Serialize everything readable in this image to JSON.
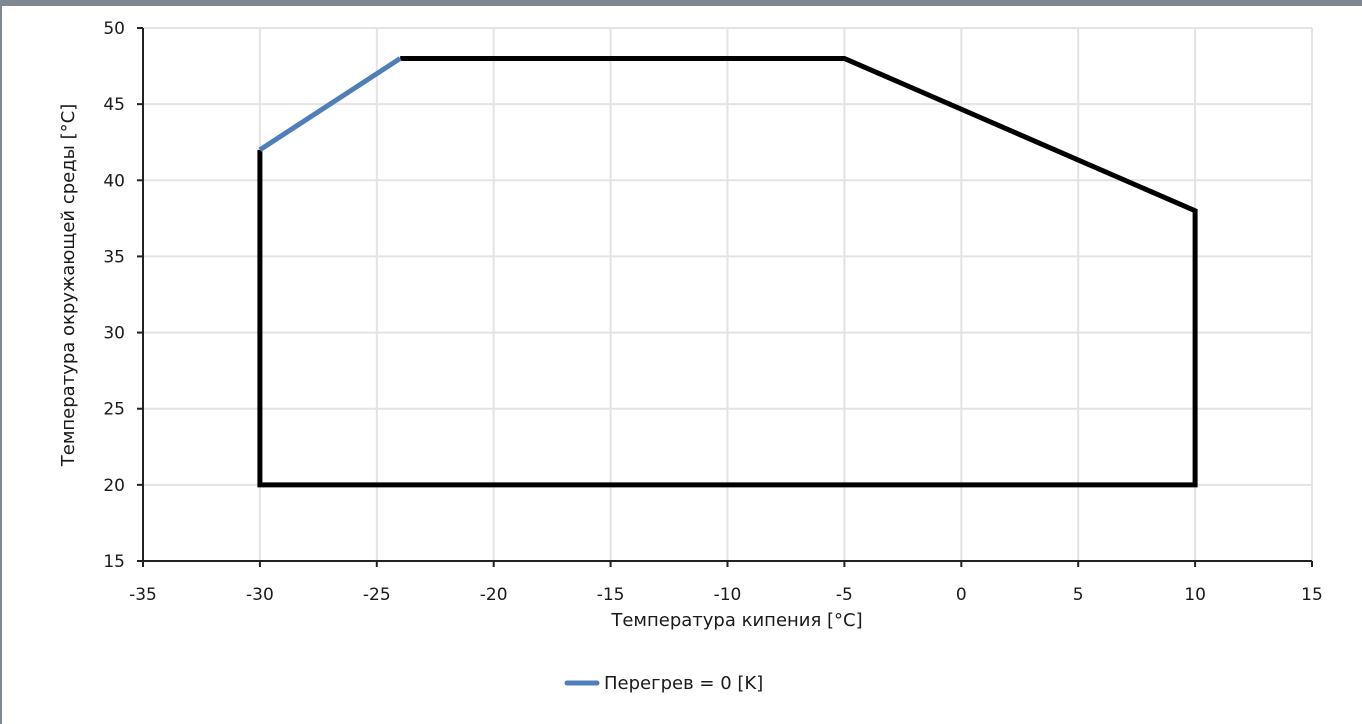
{
  "chart_data": {
    "type": "line",
    "xlabel": "Температура кипения [°C]",
    "ylabel": "Температура окружающей среды [°C]",
    "xlim": [
      -35,
      15
    ],
    "ylim": [
      15,
      50
    ],
    "x_ticks": [
      -35,
      -30,
      -25,
      -20,
      -15,
      -10,
      -5,
      0,
      5,
      10,
      15
    ],
    "y_ticks": [
      15,
      20,
      25,
      30,
      35,
      40,
      45,
      50
    ],
    "grid": true,
    "legend_position": "bottom-center",
    "series": [
      {
        "name": "Перегрев = 0 [K]",
        "color": "#4f7fb8",
        "x": [
          -30,
          -24
        ],
        "y": [
          42,
          48
        ]
      },
      {
        "color": "#000000",
        "x": [
          -24,
          -5,
          10,
          10,
          -30,
          -30
        ],
        "y": [
          48,
          48,
          38,
          20,
          20,
          42
        ]
      }
    ],
    "legend": [
      {
        "label": "Перегрев = 0 [K]",
        "color": "#4f7fb8"
      }
    ]
  },
  "colors": {
    "grid": "#e3e3e3",
    "axis": "#222222",
    "frame_border": "#7f8790"
  }
}
